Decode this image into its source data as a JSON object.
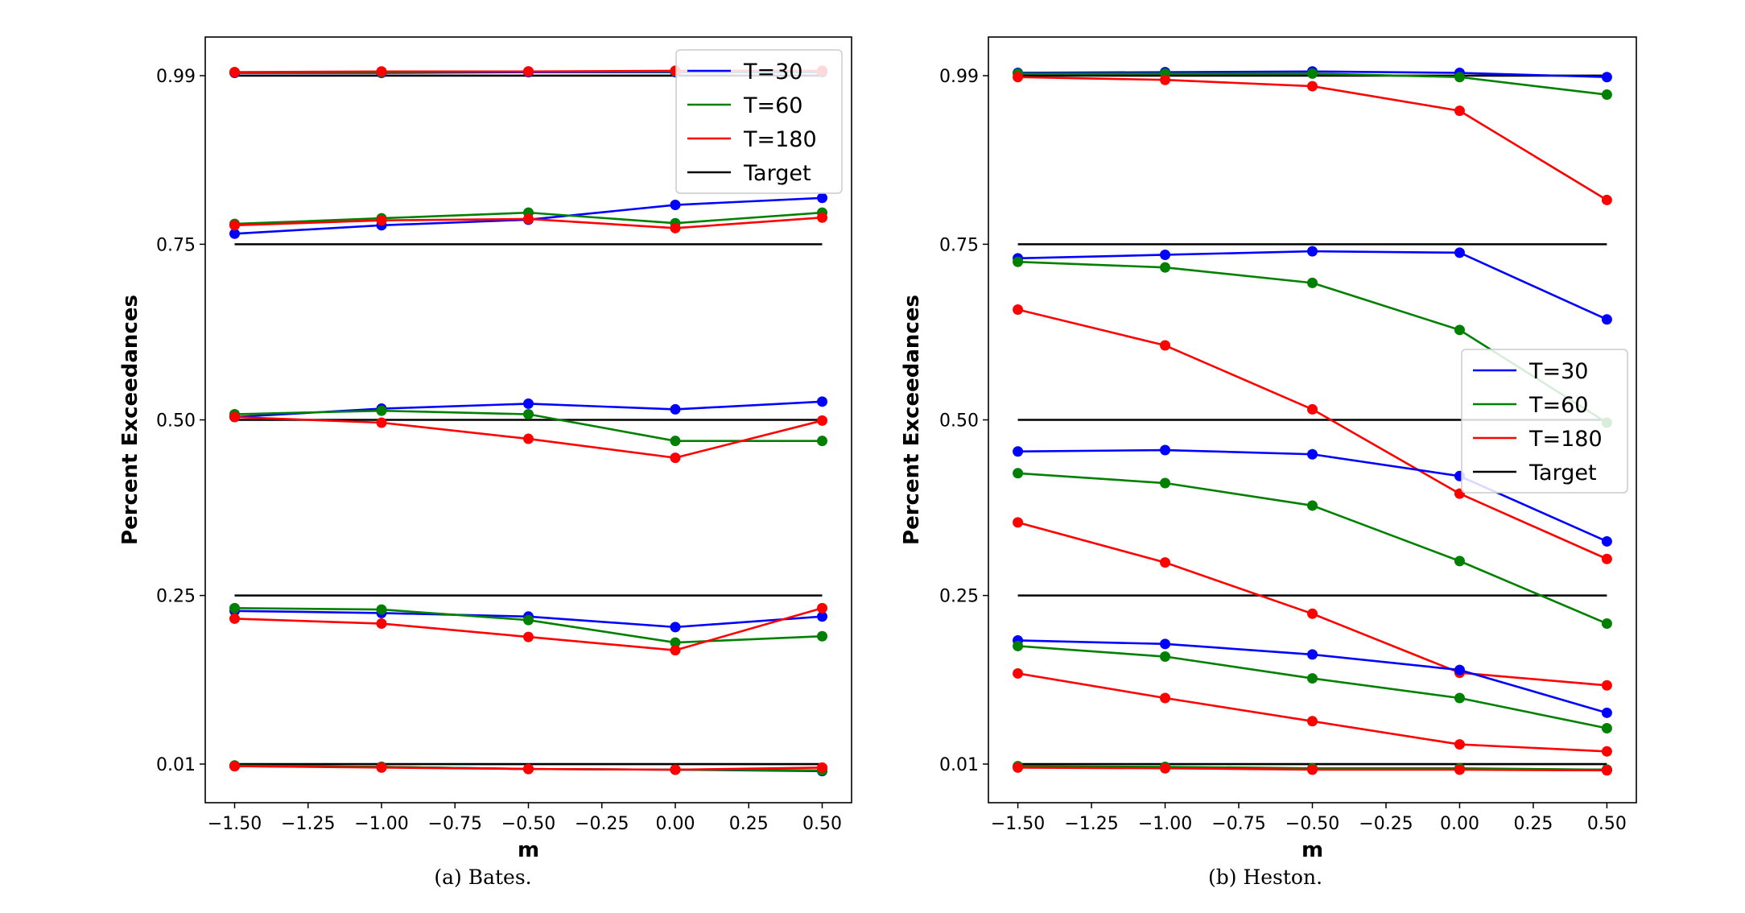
{
  "figure": {
    "captions": [
      "(a)  Bates.",
      "(b)  Heston."
    ]
  },
  "chart_data": [
    {
      "type": "line",
      "title": "",
      "caption": "(a)  Bates.",
      "xlabel": "m",
      "ylabel": "Percent Exceedances",
      "x": [
        -1.5,
        -1.0,
        -0.5,
        0.0,
        0.5
      ],
      "xlim": [
        -1.6,
        0.6
      ],
      "ylim": [
        -0.045,
        1.045
      ],
      "xticks": [
        -1.5,
        -1.25,
        -1.0,
        -0.75,
        -0.5,
        -0.25,
        0.0,
        0.25,
        0.5
      ],
      "xtick_labels": [
        "−1.50",
        "−1.25",
        "−1.00",
        "−0.75",
        "−0.50",
        "−0.25",
        "0.00",
        "0.25",
        "0.50"
      ],
      "yticks": [
        0.01,
        0.25,
        0.5,
        0.75,
        0.99
      ],
      "ytick_labels": [
        "0.01",
        "0.25",
        "0.50",
        "0.75",
        "0.99"
      ],
      "legend_loc": "upper right",
      "legend": [
        {
          "label": "T=30",
          "color": "#0000ff"
        },
        {
          "label": "T=60",
          "color": "#008000"
        },
        {
          "label": "T=180",
          "color": "#ff0000"
        },
        {
          "label": "Target",
          "color": "#000000"
        }
      ],
      "target_levels": [
        0.99,
        0.75,
        0.5,
        0.25,
        0.01
      ],
      "series": [
        {
          "name": "T=30",
          "color": "#0000ff",
          "level": 0.99,
          "values": [
            0.994,
            0.994,
            0.995,
            0.995,
            0.995
          ]
        },
        {
          "name": "T=60",
          "color": "#008000",
          "level": 0.99,
          "values": [
            0.995,
            0.995,
            0.996,
            0.996,
            0.996
          ]
        },
        {
          "name": "T=180",
          "color": "#ff0000",
          "level": 0.99,
          "values": [
            0.995,
            0.996,
            0.996,
            0.997,
            0.997
          ]
        },
        {
          "name": "T=30",
          "color": "#0000ff",
          "level": 0.75,
          "values": [
            0.765,
            0.777,
            0.785,
            0.806,
            0.816
          ]
        },
        {
          "name": "T=60",
          "color": "#008000",
          "level": 0.75,
          "values": [
            0.779,
            0.787,
            0.795,
            0.78,
            0.795
          ]
        },
        {
          "name": "T=180",
          "color": "#ff0000",
          "level": 0.75,
          "values": [
            0.777,
            0.784,
            0.786,
            0.773,
            0.788
          ]
        },
        {
          "name": "T=30",
          "color": "#0000ff",
          "level": 0.5,
          "values": [
            0.504,
            0.516,
            0.523,
            0.515,
            0.526
          ]
        },
        {
          "name": "T=60",
          "color": "#008000",
          "level": 0.5,
          "values": [
            0.508,
            0.513,
            0.508,
            0.47,
            0.47
          ]
        },
        {
          "name": "T=180",
          "color": "#ff0000",
          "level": 0.5,
          "values": [
            0.504,
            0.496,
            0.473,
            0.446,
            0.499
          ]
        },
        {
          "name": "T=30",
          "color": "#0000ff",
          "level": 0.25,
          "values": [
            0.228,
            0.225,
            0.22,
            0.205,
            0.22
          ]
        },
        {
          "name": "T=60",
          "color": "#008000",
          "level": 0.25,
          "values": [
            0.232,
            0.23,
            0.215,
            0.183,
            0.192
          ]
        },
        {
          "name": "T=180",
          "color": "#ff0000",
          "level": 0.25,
          "values": [
            0.217,
            0.21,
            0.191,
            0.172,
            0.232
          ]
        },
        {
          "name": "T=30",
          "color": "#0000ff",
          "level": 0.01,
          "values": [
            0.007,
            0.006,
            0.003,
            0.002,
            0.0
          ]
        },
        {
          "name": "T=60",
          "color": "#008000",
          "level": 0.01,
          "values": [
            0.008,
            0.006,
            0.003,
            0.002,
            0.001
          ]
        },
        {
          "name": "T=180",
          "color": "#ff0000",
          "level": 0.01,
          "values": [
            0.007,
            0.005,
            0.003,
            0.002,
            0.005
          ]
        }
      ]
    },
    {
      "type": "line",
      "title": "",
      "caption": "(b)  Heston.",
      "xlabel": "m",
      "ylabel": "Percent Exceedances",
      "x": [
        -1.5,
        -1.0,
        -0.5,
        0.0,
        0.5
      ],
      "xlim": [
        -1.6,
        0.6
      ],
      "ylim": [
        -0.045,
        1.045
      ],
      "xticks": [
        -1.5,
        -1.25,
        -1.0,
        -0.75,
        -0.5,
        -0.25,
        0.0,
        0.25,
        0.5
      ],
      "xtick_labels": [
        "−1.50",
        "−1.25",
        "−1.00",
        "−0.75",
        "−0.50",
        "−0.25",
        "0.00",
        "0.25",
        "0.50"
      ],
      "yticks": [
        0.01,
        0.25,
        0.5,
        0.75,
        0.99
      ],
      "ytick_labels": [
        "0.01",
        "0.25",
        "0.50",
        "0.75",
        "0.99"
      ],
      "legend_loc": "center right",
      "legend": [
        {
          "label": "T=30",
          "color": "#0000ff"
        },
        {
          "label": "T=60",
          "color": "#008000"
        },
        {
          "label": "T=180",
          "color": "#ff0000"
        },
        {
          "label": "Target",
          "color": "#000000"
        }
      ],
      "target_levels": [
        0.99,
        0.75,
        0.5,
        0.25,
        0.01
      ],
      "series": [
        {
          "name": "T=30",
          "color": "#0000ff",
          "level": 0.99,
          "values": [
            0.994,
            0.995,
            0.996,
            0.994,
            0.988
          ]
        },
        {
          "name": "T=60",
          "color": "#008000",
          "level": 0.99,
          "values": [
            0.993,
            0.993,
            0.993,
            0.988,
            0.963
          ]
        },
        {
          "name": "T=180",
          "color": "#ff0000",
          "level": 0.99,
          "values": [
            0.988,
            0.984,
            0.975,
            0.94,
            0.813
          ]
        },
        {
          "name": "T=30",
          "color": "#0000ff",
          "level": 0.75,
          "values": [
            0.73,
            0.735,
            0.74,
            0.738,
            0.643
          ]
        },
        {
          "name": "T=60",
          "color": "#008000",
          "level": 0.75,
          "values": [
            0.725,
            0.717,
            0.695,
            0.628,
            0.496
          ]
        },
        {
          "name": "T=180",
          "color": "#ff0000",
          "level": 0.75,
          "values": [
            0.657,
            0.606,
            0.515,
            0.395,
            0.302
          ]
        },
        {
          "name": "T=30",
          "color": "#0000ff",
          "level": 0.5,
          "values": [
            0.455,
            0.457,
            0.451,
            0.42,
            0.327
          ]
        },
        {
          "name": "T=60",
          "color": "#008000",
          "level": 0.5,
          "values": [
            0.424,
            0.41,
            0.378,
            0.299,
            0.21
          ]
        },
        {
          "name": "T=180",
          "color": "#ff0000",
          "level": 0.5,
          "values": [
            0.354,
            0.297,
            0.224,
            0.14,
            0.122
          ]
        },
        {
          "name": "T=30",
          "color": "#0000ff",
          "level": 0.25,
          "values": [
            0.186,
            0.181,
            0.166,
            0.144,
            0.083
          ]
        },
        {
          "name": "T=60",
          "color": "#008000",
          "level": 0.25,
          "values": [
            0.178,
            0.163,
            0.132,
            0.104,
            0.061
          ]
        },
        {
          "name": "T=180",
          "color": "#ff0000",
          "level": 0.25,
          "values": [
            0.139,
            0.104,
            0.071,
            0.038,
            0.028
          ]
        },
        {
          "name": "T=30",
          "color": "#0000ff",
          "level": 0.01,
          "values": [
            0.006,
            0.005,
            0.003,
            0.003,
            0.002
          ]
        },
        {
          "name": "T=60",
          "color": "#008000",
          "level": 0.01,
          "values": [
            0.007,
            0.006,
            0.004,
            0.004,
            0.002
          ]
        },
        {
          "name": "T=180",
          "color": "#ff0000",
          "level": 0.01,
          "values": [
            0.005,
            0.004,
            0.002,
            0.002,
            0.001
          ]
        }
      ]
    }
  ]
}
